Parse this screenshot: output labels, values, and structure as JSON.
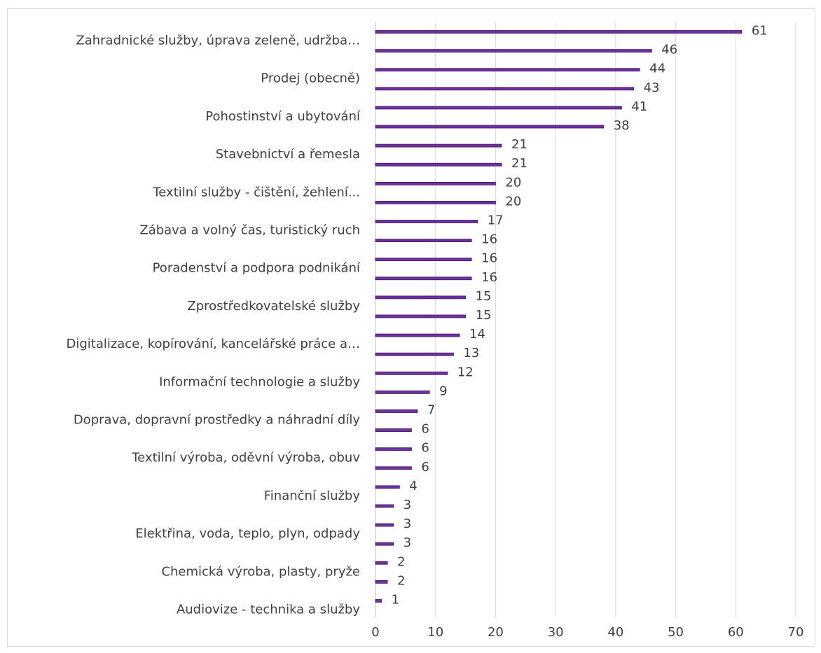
{
  "chart_data": {
    "type": "bar",
    "orientation": "horizontal",
    "grid": "vertical",
    "legend": "none",
    "bar_color": "#7030A0",
    "bar_edge_color": "#3d1a5c",
    "xlim": [
      0,
      70
    ],
    "x_ticks": [
      0,
      10,
      20,
      30,
      40,
      50,
      60,
      70
    ],
    "category_labels": [
      "Zahradnické služby, úprava zeleně, udržba…",
      "Prodej (obecně)",
      "Pohostinství a ubytování",
      "Stavebnictví a řemesla",
      "Textilní služby - čištění, žehlení...",
      "Zábava a volný čas, turistický ruch",
      "Poradenství a podpora podnikání",
      "Zprostředkovatelské služby",
      "Digitalizace, kopírování, kancelářské práce a…",
      "Informační technologie a služby",
      "Doprava, dopravní prostředky a náhradní díly",
      "Textilní výroba, oděvní výroba, obuv",
      "Finanční služby",
      "Elektřina, voda, teplo, plyn, odpady",
      "Chemická výroba, plasty, pryže",
      "Audiovize - technika a služby"
    ],
    "values": [
      61,
      46,
      44,
      43,
      41,
      38,
      21,
      21,
      20,
      20,
      17,
      16,
      16,
      16,
      15,
      15,
      14,
      13,
      12,
      9,
      7,
      6,
      6,
      6,
      4,
      3,
      3,
      3,
      2,
      2,
      1
    ]
  }
}
